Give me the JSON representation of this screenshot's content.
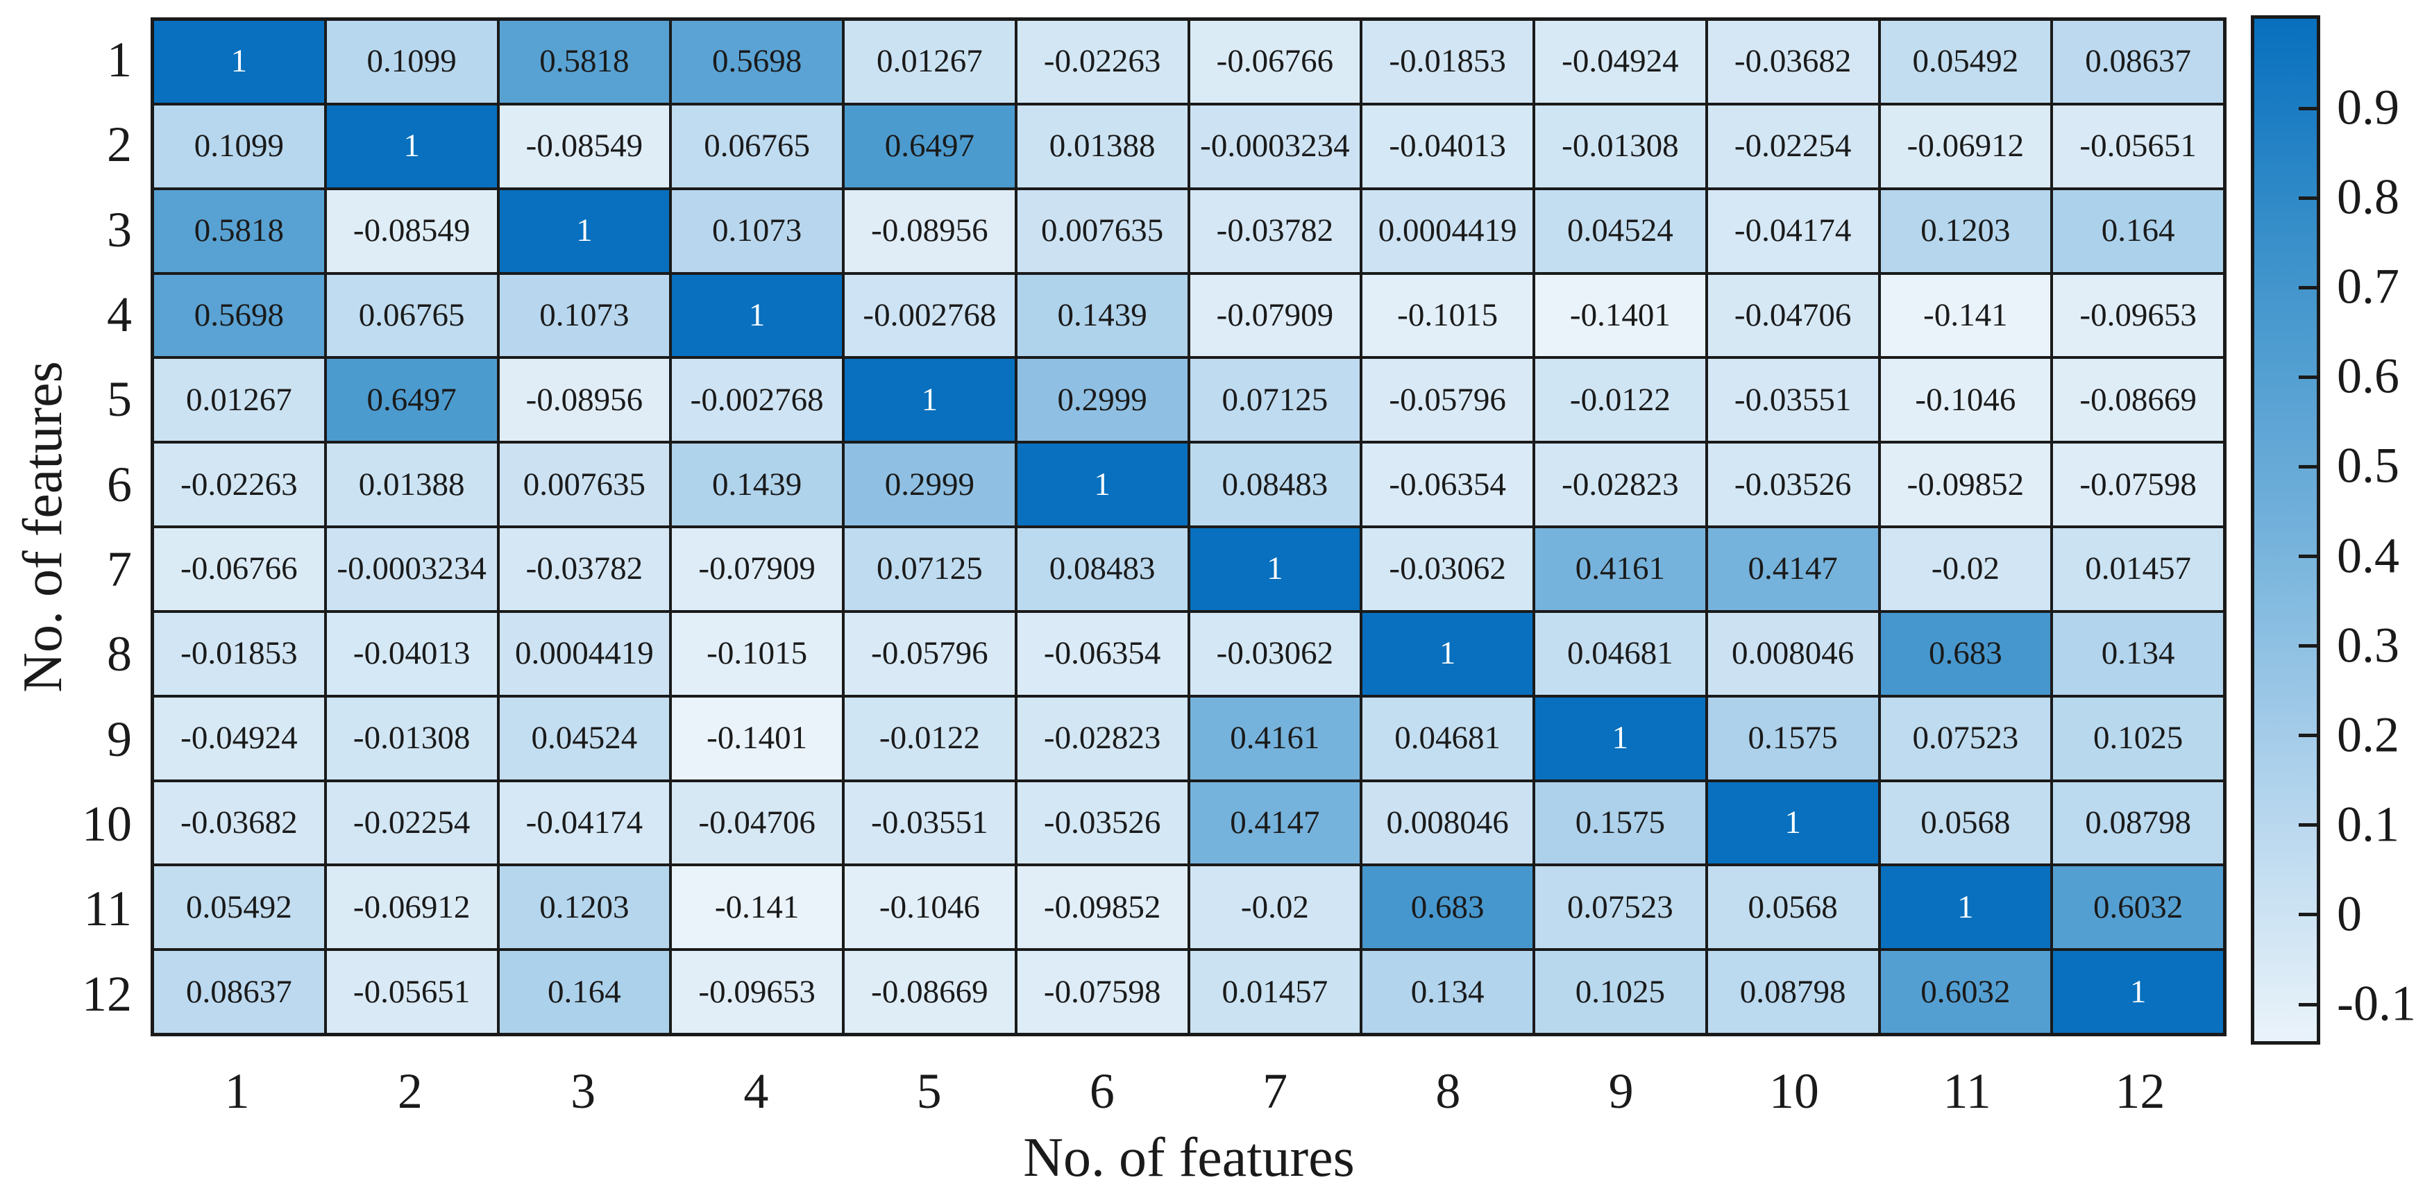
{
  "chart_data": {
    "type": "heatmap",
    "title": "",
    "xlabel": "No. of features",
    "ylabel": "No. of features",
    "x_tick_labels": [
      "1",
      "2",
      "3",
      "4",
      "5",
      "6",
      "7",
      "8",
      "9",
      "10",
      "11",
      "12"
    ],
    "y_tick_labels": [
      "1",
      "2",
      "3",
      "4",
      "5",
      "6",
      "7",
      "8",
      "9",
      "10",
      "11",
      "12"
    ],
    "matrix": [
      [
        "1",
        "0.1099",
        "0.5818",
        "0.5698",
        "0.01267",
        "-0.02263",
        "-0.06766",
        "-0.01853",
        "-0.04924",
        "-0.03682",
        "0.05492",
        "0.08637"
      ],
      [
        "0.1099",
        "1",
        "-0.08549",
        "0.06765",
        "0.6497",
        "0.01388",
        "-0.0003234",
        "-0.04013",
        "-0.01308",
        "-0.02254",
        "-0.06912",
        "-0.05651"
      ],
      [
        "0.5818",
        "-0.08549",
        "1",
        "0.1073",
        "-0.08956",
        "0.007635",
        "-0.03782",
        "0.0004419",
        "0.04524",
        "-0.04174",
        "0.1203",
        "0.164"
      ],
      [
        "0.5698",
        "0.06765",
        "0.1073",
        "1",
        "-0.002768",
        "0.1439",
        "-0.07909",
        "-0.1015",
        "-0.1401",
        "-0.04706",
        "-0.141",
        "-0.09653"
      ],
      [
        "0.01267",
        "0.6497",
        "-0.08956",
        "-0.002768",
        "1",
        "0.2999",
        "0.07125",
        "-0.05796",
        "-0.0122",
        "-0.03551",
        "-0.1046",
        "-0.08669"
      ],
      [
        "-0.02263",
        "0.01388",
        "0.007635",
        "0.1439",
        "0.2999",
        "1",
        "0.08483",
        "-0.06354",
        "-0.02823",
        "-0.03526",
        "-0.09852",
        "-0.07598"
      ],
      [
        "-0.06766",
        "-0.0003234",
        "-0.03782",
        "-0.07909",
        "0.07125",
        "0.08483",
        "1",
        "-0.03062",
        "0.4161",
        "0.4147",
        "-0.02",
        "0.01457"
      ],
      [
        "-0.01853",
        "-0.04013",
        "0.0004419",
        "-0.1015",
        "-0.05796",
        "-0.06354",
        "-0.03062",
        "1",
        "0.04681",
        "0.008046",
        "0.683",
        "0.134"
      ],
      [
        "-0.04924",
        "-0.01308",
        "0.04524",
        "-0.1401",
        "-0.0122",
        "-0.02823",
        "0.4161",
        "0.04681",
        "1",
        "0.1575",
        "0.07523",
        "0.1025"
      ],
      [
        "-0.03682",
        "-0.02254",
        "-0.04174",
        "-0.04706",
        "-0.03551",
        "-0.03526",
        "0.4147",
        "0.008046",
        "0.1575",
        "1",
        "0.0568",
        "0.08798"
      ],
      [
        "0.05492",
        "-0.06912",
        "0.1203",
        "-0.141",
        "-0.1046",
        "-0.09852",
        "-0.02",
        "0.683",
        "0.07523",
        "0.0568",
        "1",
        "0.6032"
      ],
      [
        "0.08637",
        "-0.05651",
        "0.164",
        "-0.09653",
        "-0.08669",
        "-0.07598",
        "0.01457",
        "0.134",
        "0.1025",
        "0.08798",
        "0.6032",
        "1"
      ]
    ],
    "value_range": [
      -0.141,
      1
    ],
    "colorbar": {
      "position": "right",
      "tick_labels": [
        "0.9",
        "0.8",
        "0.7",
        "0.6",
        "0.5",
        "0.4",
        "0.3",
        "0.2",
        "0.1",
        "0",
        "-0.1"
      ],
      "tick_values": [
        0.9,
        0.8,
        0.7,
        0.6,
        0.5,
        0.4,
        0.3,
        0.2,
        0.1,
        0,
        -0.1
      ]
    },
    "colormap": {
      "name": "blues-sequential",
      "stops": [
        {
          "t": 0.0,
          "color": "#EAF3FA"
        },
        {
          "t": 0.25,
          "color": "#B0D3EC"
        },
        {
          "t": 0.5,
          "color": "#73B1DB"
        },
        {
          "t": 0.75,
          "color": "#4094CC"
        },
        {
          "t": 1.0,
          "color": "#0870BE"
        }
      ]
    },
    "grid_on": true,
    "grid_color": "#1a1a1a",
    "cell_text_color": "#1a1a1a",
    "diagonal_text_color": "#ffffff",
    "background_color": "#ffffff"
  }
}
